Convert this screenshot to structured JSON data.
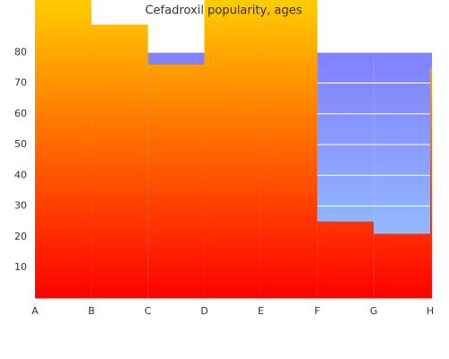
{
  "chart_data": {
    "type": "step-area",
    "title": "Cefadroxil popularity, ages",
    "categories": [
      "A",
      "B",
      "C",
      "D",
      "E",
      "F",
      "G",
      "H"
    ],
    "series": [
      {
        "values": [
          80,
          80,
          80,
          80,
          80,
          80,
          80,
          80
        ],
        "colors": [
          "#99ccff",
          "#8080ff"
        ]
      },
      {
        "values": [
          100,
          89,
          76,
          100,
          100,
          25,
          21,
          75
        ],
        "colors": [
          "#ff0000",
          "#ffcc00"
        ]
      }
    ],
    "ylim": [
      0,
      97
    ],
    "yticks": [
      10,
      20,
      30,
      40,
      50,
      60,
      70,
      80
    ],
    "grid": true
  }
}
